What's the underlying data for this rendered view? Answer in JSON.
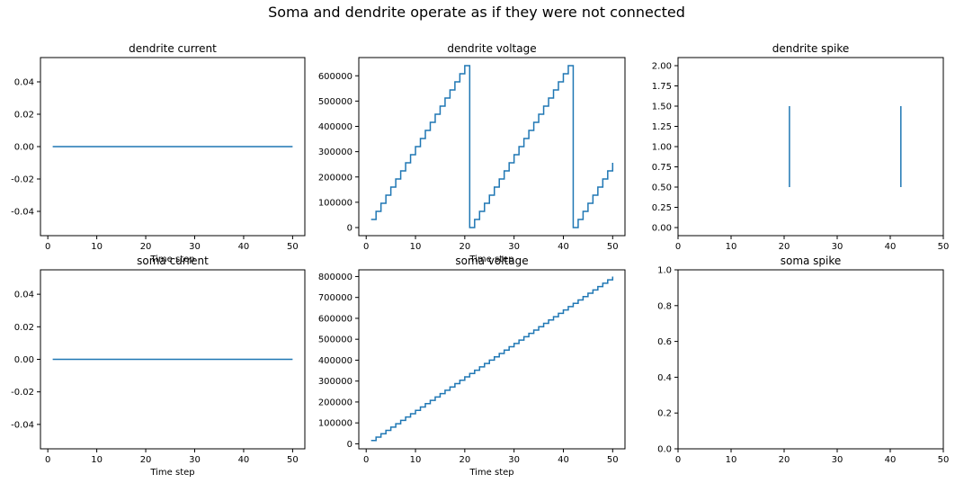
{
  "suptitle": "Soma and dendrite operate as if they were not connected",
  "colors": {
    "series": "#1f77b4"
  },
  "chart_data": [
    {
      "id": "dendrite-current",
      "type": "line",
      "drawstyle": "steps",
      "title": "dendrite current",
      "xlabel": "Time step",
      "ylabel": "",
      "xlim": [
        -1.5,
        52.5
      ],
      "ylim": [
        -0.055,
        0.055
      ],
      "xticks": [
        0,
        10,
        20,
        30,
        40,
        50
      ],
      "xtick_labels": [
        "0",
        "10",
        "20",
        "30",
        "40",
        "50"
      ],
      "yticks": [
        -0.04,
        -0.02,
        0,
        0.02,
        0.04
      ],
      "ytick_labels": [
        "-0.04",
        "-0.02",
        "0.00",
        "0.02",
        "0.04"
      ],
      "series": [
        {
          "x": [
            1,
            50
          ],
          "y": [
            0,
            0
          ]
        }
      ]
    },
    {
      "id": "dendrite-voltage",
      "type": "line",
      "drawstyle": "steps",
      "title": "dendrite voltage",
      "xlabel": "Time step",
      "ylabel": "",
      "xlim": [
        -1.5,
        52.5
      ],
      "ylim": [
        -32000,
        672000
      ],
      "xticks": [
        0,
        10,
        20,
        30,
        40,
        50
      ],
      "xtick_labels": [
        "0",
        "10",
        "20",
        "30",
        "40",
        "50"
      ],
      "yticks": [
        0,
        100000,
        200000,
        300000,
        400000,
        500000,
        600000
      ],
      "ytick_labels": [
        "0",
        "100000",
        "200000",
        "300000",
        "400000",
        "500000",
        "600000"
      ],
      "series": [
        {
          "x": [
            1,
            2,
            3,
            4,
            5,
            6,
            7,
            8,
            9,
            10,
            11,
            12,
            13,
            14,
            15,
            16,
            17,
            18,
            19,
            20,
            21,
            22,
            23,
            24,
            25,
            26,
            27,
            28,
            29,
            30,
            31,
            32,
            33,
            34,
            35,
            36,
            37,
            38,
            39,
            40,
            41,
            42,
            43,
            44,
            45,
            46,
            47,
            48,
            49,
            50
          ],
          "y": [
            32000,
            64000,
            96000,
            128000,
            160000,
            192000,
            224000,
            256000,
            288000,
            320000,
            352000,
            384000,
            416000,
            448000,
            480000,
            512000,
            544000,
            576000,
            608000,
            640000,
            0,
            32000,
            64000,
            96000,
            128000,
            160000,
            192000,
            224000,
            256000,
            288000,
            320000,
            352000,
            384000,
            416000,
            448000,
            480000,
            512000,
            544000,
            576000,
            608000,
            640000,
            0,
            32000,
            64000,
            96000,
            128000,
            160000,
            192000,
            224000,
            256000
          ]
        }
      ]
    },
    {
      "id": "dendrite-spike",
      "type": "line",
      "drawstyle": "segments",
      "title": "dendrite spike",
      "xlabel": "",
      "ylabel": "",
      "xlim": [
        0,
        50
      ],
      "ylim": [
        -0.1,
        2.1
      ],
      "xticks": [
        0,
        10,
        20,
        30,
        40,
        50
      ],
      "xtick_labels": [
        "0",
        "10",
        "20",
        "30",
        "40",
        "50"
      ],
      "yticks": [
        0,
        0.25,
        0.5,
        0.75,
        1,
        1.25,
        1.5,
        1.75,
        2
      ],
      "ytick_labels": [
        "0.00",
        "0.25",
        "0.50",
        "0.75",
        "1.00",
        "1.25",
        "1.50",
        "1.75",
        "2.00"
      ],
      "segments": [
        {
          "x": 21,
          "y0": 0.5,
          "y1": 1.5
        },
        {
          "x": 42,
          "y0": 0.5,
          "y1": 1.5
        }
      ]
    },
    {
      "id": "soma-current",
      "type": "line",
      "drawstyle": "steps",
      "title": "soma current",
      "xlabel": "Time step",
      "ylabel": "",
      "xlim": [
        -1.5,
        52.5
      ],
      "ylim": [
        -0.055,
        0.055
      ],
      "xticks": [
        0,
        10,
        20,
        30,
        40,
        50
      ],
      "xtick_labels": [
        "0",
        "10",
        "20",
        "30",
        "40",
        "50"
      ],
      "yticks": [
        -0.04,
        -0.02,
        0,
        0.02,
        0.04
      ],
      "ytick_labels": [
        "-0.04",
        "-0.02",
        "0.00",
        "0.02",
        "0.04"
      ],
      "series": [
        {
          "x": [
            1,
            50
          ],
          "y": [
            0,
            0
          ]
        }
      ]
    },
    {
      "id": "soma-voltage",
      "type": "line",
      "drawstyle": "steps",
      "title": "soma voltage",
      "xlabel": "Time step",
      "ylabel": "",
      "xlim": [
        -1.5,
        52.5
      ],
      "ylim": [
        -24000,
        832000
      ],
      "xticks": [
        0,
        10,
        20,
        30,
        40,
        50
      ],
      "xtick_labels": [
        "0",
        "10",
        "20",
        "30",
        "40",
        "50"
      ],
      "yticks": [
        0,
        100000,
        200000,
        300000,
        400000,
        500000,
        600000,
        700000,
        800000
      ],
      "ytick_labels": [
        "0",
        "100000",
        "200000",
        "300000",
        "400000",
        "500000",
        "600000",
        "700000",
        "800000"
      ],
      "series": [
        {
          "x": [
            1,
            2,
            3,
            4,
            5,
            6,
            7,
            8,
            9,
            10,
            11,
            12,
            13,
            14,
            15,
            16,
            17,
            18,
            19,
            20,
            21,
            22,
            23,
            24,
            25,
            26,
            27,
            28,
            29,
            30,
            31,
            32,
            33,
            34,
            35,
            36,
            37,
            38,
            39,
            40,
            41,
            42,
            43,
            44,
            45,
            46,
            47,
            48,
            49,
            50
          ],
          "y": [
            16000,
            32000,
            48000,
            64000,
            80000,
            96000,
            112000,
            128000,
            144000,
            160000,
            176000,
            192000,
            208000,
            224000,
            240000,
            256000,
            272000,
            288000,
            304000,
            320000,
            336000,
            352000,
            368000,
            384000,
            400000,
            416000,
            432000,
            448000,
            464000,
            480000,
            496000,
            512000,
            528000,
            544000,
            560000,
            576000,
            592000,
            608000,
            624000,
            640000,
            656000,
            672000,
            688000,
            704000,
            720000,
            736000,
            752000,
            768000,
            784000,
            800000
          ]
        }
      ]
    },
    {
      "id": "soma-spike",
      "type": "line",
      "drawstyle": "segments",
      "title": "soma spike",
      "xlabel": "",
      "ylabel": "",
      "xlim": [
        0,
        50
      ],
      "ylim": [
        0,
        1
      ],
      "xticks": [
        0,
        10,
        20,
        30,
        40,
        50
      ],
      "xtick_labels": [
        "0",
        "10",
        "20",
        "30",
        "40",
        "50"
      ],
      "yticks": [
        0,
        0.2,
        0.4,
        0.6,
        0.8,
        1
      ],
      "ytick_labels": [
        "0.0",
        "0.2",
        "0.4",
        "0.6",
        "0.8",
        "1.0"
      ],
      "segments": []
    }
  ]
}
